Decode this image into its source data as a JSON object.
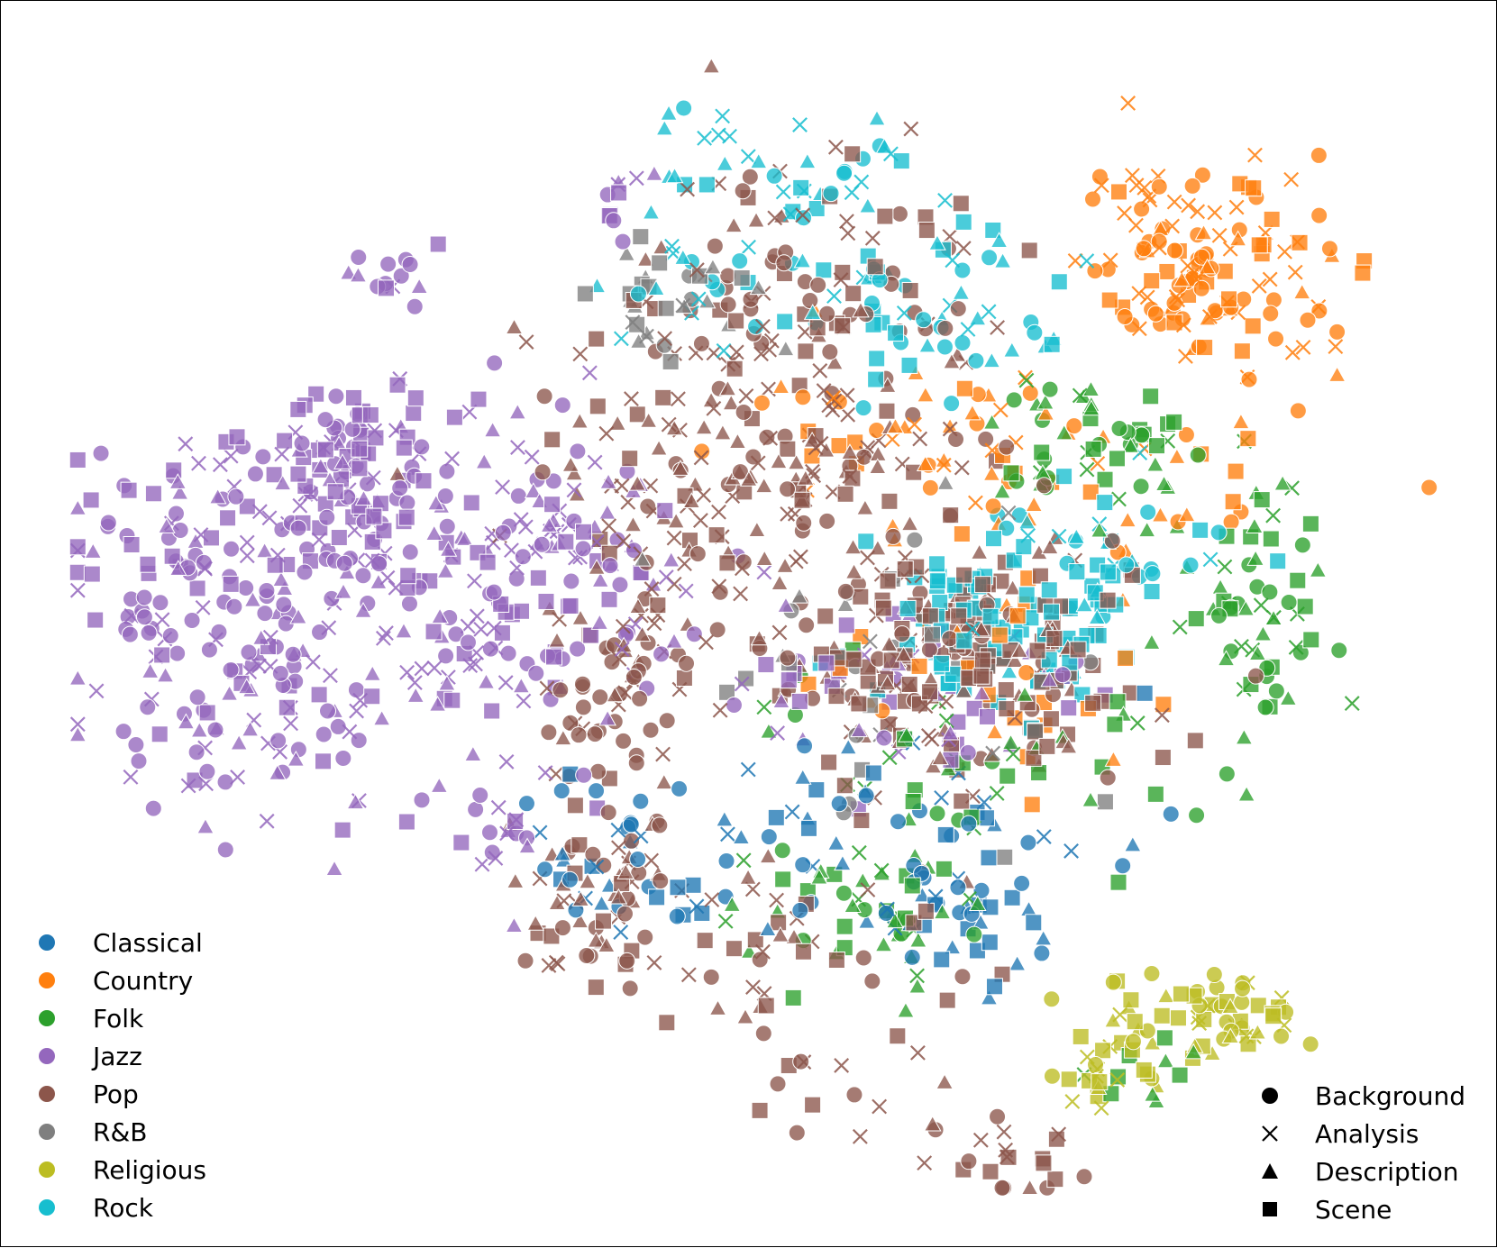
{
  "chart_data": {
    "type": "scatter",
    "title": "",
    "xlabel": "",
    "ylabel": "",
    "axes_visible": false,
    "grid": false,
    "xlim": [
      -1.0,
      1.0
    ],
    "ylim": [
      -1.0,
      1.0
    ],
    "categories": [
      "Classical",
      "Country",
      "Folk",
      "Jazz",
      "Pop",
      "R&B",
      "Religious",
      "Rock"
    ],
    "colors": {
      "Classical": "#1f77b4",
      "Country": "#ff7f0e",
      "Folk": "#2ca02c",
      "Jazz": "#9467bd",
      "Pop": "#8c564b",
      "R&B": "#7f7f7f",
      "Religious": "#bcbd22",
      "Rock": "#17becf"
    },
    "marker_types": [
      "Background",
      "Analysis",
      "Description",
      "Scene"
    ],
    "marker_shapes": {
      "Background": "circle",
      "Analysis": "x",
      "Description": "triangle",
      "Scene": "square"
    },
    "legends": {
      "genre": {
        "placement": "lower-left",
        "entries": [
          "Classical",
          "Country",
          "Folk",
          "Jazz",
          "Pop",
          "R&B",
          "Religious",
          "Rock"
        ]
      },
      "marker": {
        "placement": "lower-right",
        "entries": [
          "Background",
          "Analysis",
          "Description",
          "Scene"
        ]
      }
    },
    "clusters": [
      {
        "genre": "Jazz",
        "center": [
          -0.52,
          0.02
        ],
        "spread": [
          0.2,
          0.17
        ],
        "n": 260,
        "mix": [
          0.35,
          0.22,
          0.2,
          0.23
        ]
      },
      {
        "genre": "Jazz",
        "center": [
          -0.58,
          0.28
        ],
        "spread": [
          0.08,
          0.07
        ],
        "n": 70,
        "mix": [
          0.25,
          0.15,
          0.15,
          0.45
        ]
      },
      {
        "genre": "Jazz",
        "center": [
          -0.8,
          0.18
        ],
        "spread": [
          0.1,
          0.1
        ],
        "n": 60,
        "mix": [
          0.3,
          0.2,
          0.2,
          0.3
        ]
      },
      {
        "genre": "Jazz",
        "center": [
          -0.74,
          -0.18
        ],
        "spread": [
          0.1,
          0.1
        ],
        "n": 50,
        "mix": [
          0.3,
          0.2,
          0.2,
          0.3
        ]
      },
      {
        "genre": "Jazz",
        "center": [
          -0.28,
          0.12
        ],
        "spread": [
          0.1,
          0.1
        ],
        "n": 60,
        "mix": [
          0.2,
          0.35,
          0.3,
          0.15
        ]
      },
      {
        "genre": "Jazz",
        "center": [
          -0.53,
          0.62
        ],
        "spread": [
          0.03,
          0.02
        ],
        "n": 14,
        "mix": [
          0.5,
          0.1,
          0.1,
          0.3
        ]
      },
      {
        "genre": "Jazz",
        "center": [
          -0.9,
          0.02
        ],
        "spread": [
          0.02,
          0.02
        ],
        "n": 8,
        "mix": [
          0.6,
          0.1,
          0.1,
          0.2
        ]
      },
      {
        "genre": "Jazz",
        "center": [
          -0.34,
          -0.34
        ],
        "spread": [
          0.04,
          0.05
        ],
        "n": 16,
        "mix": [
          0.5,
          0.2,
          0.1,
          0.2
        ]
      },
      {
        "genre": "Jazz",
        "center": [
          0.24,
          -0.1
        ],
        "spread": [
          0.14,
          0.1
        ],
        "n": 50,
        "mix": [
          0.2,
          0.2,
          0.3,
          0.3
        ]
      },
      {
        "genre": "Jazz",
        "center": [
          -0.19,
          0.75
        ],
        "spread": [
          0.03,
          0.03
        ],
        "n": 10,
        "mix": [
          0.4,
          0.2,
          0.2,
          0.2
        ]
      },
      {
        "genre": "Pop",
        "center": [
          0.3,
          -0.06
        ],
        "spread": [
          0.12,
          0.11
        ],
        "n": 200,
        "mix": [
          0.15,
          0.1,
          0.2,
          0.55
        ]
      },
      {
        "genre": "Pop",
        "center": [
          -0.02,
          0.22
        ],
        "spread": [
          0.17,
          0.13
        ],
        "n": 160,
        "mix": [
          0.15,
          0.35,
          0.35,
          0.15
        ]
      },
      {
        "genre": "Pop",
        "center": [
          0.08,
          0.55
        ],
        "spread": [
          0.13,
          0.17
        ],
        "n": 130,
        "mix": [
          0.35,
          0.35,
          0.1,
          0.2
        ]
      },
      {
        "genre": "Pop",
        "center": [
          -0.18,
          -0.12
        ],
        "spread": [
          0.06,
          0.08
        ],
        "n": 60,
        "mix": [
          0.5,
          0.2,
          0.2,
          0.1
        ]
      },
      {
        "genre": "Pop",
        "center": [
          -0.22,
          -0.48
        ],
        "spread": [
          0.07,
          0.08
        ],
        "n": 60,
        "mix": [
          0.3,
          0.25,
          0.25,
          0.2
        ]
      },
      {
        "genre": "Pop",
        "center": [
          0.05,
          -0.55
        ],
        "spread": [
          0.12,
          0.08
        ],
        "n": 40,
        "mix": [
          0.2,
          0.2,
          0.3,
          0.3
        ]
      },
      {
        "genre": "Pop",
        "center": [
          0.15,
          -0.84
        ],
        "spread": [
          0.08,
          0.06
        ],
        "n": 18,
        "mix": [
          0.2,
          0.3,
          0.2,
          0.3
        ]
      },
      {
        "genre": "Pop",
        "center": [
          0.38,
          -0.93
        ],
        "spread": [
          0.05,
          0.04
        ],
        "n": 18,
        "mix": [
          0.1,
          0.2,
          0.1,
          0.6
        ]
      },
      {
        "genre": "Country",
        "center": [
          0.66,
          0.62
        ],
        "spread": [
          0.09,
          0.11
        ],
        "n": 140,
        "mix": [
          0.4,
          0.3,
          0.1,
          0.2
        ]
      },
      {
        "genre": "Country",
        "center": [
          0.32,
          0.3
        ],
        "spread": [
          0.18,
          0.09
        ],
        "n": 70,
        "mix": [
          0.3,
          0.2,
          0.3,
          0.2
        ]
      },
      {
        "genre": "Country",
        "center": [
          0.37,
          -0.02
        ],
        "spread": [
          0.15,
          0.12
        ],
        "n": 30,
        "mix": [
          0.1,
          0.1,
          0.2,
          0.6
        ]
      },
      {
        "genre": "Folk",
        "center": [
          0.72,
          0.05
        ],
        "spread": [
          0.06,
          0.1
        ],
        "n": 60,
        "mix": [
          0.35,
          0.2,
          0.3,
          0.15
        ]
      },
      {
        "genre": "Folk",
        "center": [
          0.49,
          0.3
        ],
        "spread": [
          0.08,
          0.06
        ],
        "n": 50,
        "mix": [
          0.3,
          0.2,
          0.35,
          0.15
        ]
      },
      {
        "genre": "Folk",
        "center": [
          0.2,
          -0.5
        ],
        "spread": [
          0.1,
          0.08
        ],
        "n": 50,
        "mix": [
          0.2,
          0.2,
          0.3,
          0.3
        ]
      },
      {
        "genre": "Folk",
        "center": [
          0.4,
          -0.25
        ],
        "spread": [
          0.18,
          0.1
        ],
        "n": 40,
        "mix": [
          0.2,
          0.2,
          0.3,
          0.3
        ]
      },
      {
        "genre": "Folk",
        "center": [
          0.56,
          -0.78
        ],
        "spread": [
          0.04,
          0.04
        ],
        "n": 10,
        "mix": [
          0.1,
          0.1,
          0.2,
          0.6
        ]
      },
      {
        "genre": "Rock",
        "center": [
          0.36,
          0.0
        ],
        "spread": [
          0.1,
          0.09
        ],
        "n": 90,
        "mix": [
          0.05,
          0.05,
          0.1,
          0.8
        ]
      },
      {
        "genre": "Rock",
        "center": [
          0.23,
          0.55
        ],
        "spread": [
          0.12,
          0.09
        ],
        "n": 60,
        "mix": [
          0.25,
          0.25,
          0.25,
          0.25
        ]
      },
      {
        "genre": "Rock",
        "center": [
          0.06,
          0.8
        ],
        "spread": [
          0.12,
          0.08
        ],
        "n": 40,
        "mix": [
          0.3,
          0.3,
          0.2,
          0.2
        ]
      },
      {
        "genre": "Rock",
        "center": [
          0.48,
          0.14
        ],
        "spread": [
          0.1,
          0.06
        ],
        "n": 30,
        "mix": [
          0.3,
          0.3,
          0.2,
          0.2
        ]
      },
      {
        "genre": "Rock",
        "center": [
          -0.09,
          0.61
        ],
        "spread": [
          0.1,
          0.05
        ],
        "n": 14,
        "mix": [
          0.3,
          0.3,
          0.3,
          0.1
        ]
      },
      {
        "genre": "Classical",
        "center": [
          0.18,
          -0.39
        ],
        "spread": [
          0.18,
          0.12
        ],
        "n": 60,
        "mix": [
          0.3,
          0.2,
          0.2,
          0.3
        ]
      },
      {
        "genre": "Classical",
        "center": [
          -0.14,
          -0.4
        ],
        "spread": [
          0.1,
          0.08
        ],
        "n": 30,
        "mix": [
          0.3,
          0.2,
          0.3,
          0.2
        ]
      },
      {
        "genre": "Classical",
        "center": [
          0.31,
          -0.5
        ],
        "spread": [
          0.06,
          0.06
        ],
        "n": 30,
        "mix": [
          0.3,
          0.1,
          0.2,
          0.4
        ]
      },
      {
        "genre": "R&B",
        "center": [
          -0.14,
          0.56
        ],
        "spread": [
          0.07,
          0.05
        ],
        "n": 30,
        "mix": [
          0.1,
          0.2,
          0.3,
          0.4
        ]
      },
      {
        "genre": "R&B",
        "center": [
          0.18,
          -0.1
        ],
        "spread": [
          0.2,
          0.15
        ],
        "n": 30,
        "mix": [
          0.2,
          0.1,
          0.2,
          0.5
        ]
      },
      {
        "genre": "Religious",
        "center": [
          0.64,
          -0.68
        ],
        "spread": [
          0.07,
          0.04
        ],
        "n": 60,
        "mix": [
          0.3,
          0.2,
          0.2,
          0.3
        ]
      },
      {
        "genre": "Religious",
        "center": [
          0.51,
          -0.78
        ],
        "spread": [
          0.03,
          0.03
        ],
        "n": 20,
        "mix": [
          0.2,
          0.4,
          0.1,
          0.3
        ]
      }
    ],
    "seed": 20240517
  }
}
